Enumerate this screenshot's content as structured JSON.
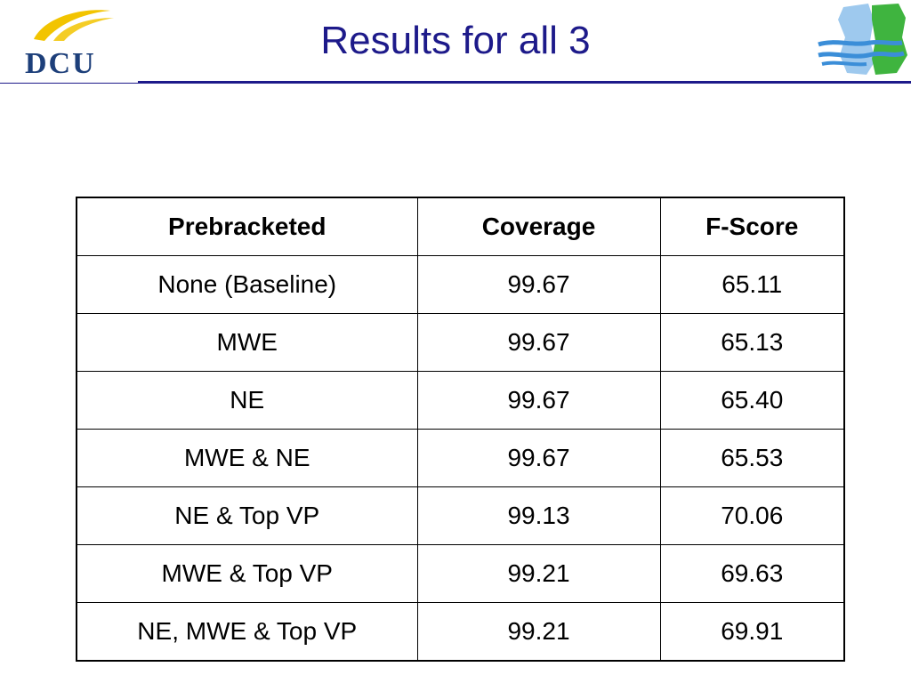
{
  "header": {
    "title": "Results for all 3",
    "logo_text": "DCU",
    "logo_icon": "dcu-logo-icon",
    "right_icon": "ireland-map-icon"
  },
  "colors": {
    "title": "#1d1a8a",
    "rule": "#1d1a8a",
    "logo_gold": "#f2c400",
    "logo_blue": "#1d3f7a",
    "map_blue": "#3b8ed8",
    "map_green": "#3fb43f"
  },
  "table": {
    "columns": [
      "Prebracketed",
      "Coverage",
      "F-Score"
    ],
    "rows": [
      [
        "None (Baseline)",
        "99.67",
        "65.11"
      ],
      [
        "MWE",
        "99.67",
        "65.13"
      ],
      [
        "NE",
        "99.67",
        "65.40"
      ],
      [
        "MWE & NE",
        "99.67",
        "65.53"
      ],
      [
        "NE & Top VP",
        "99.13",
        "70.06"
      ],
      [
        "MWE & Top VP",
        "99.21",
        "69.63"
      ],
      [
        "NE, MWE & Top VP",
        "99.21",
        "69.91"
      ]
    ]
  }
}
